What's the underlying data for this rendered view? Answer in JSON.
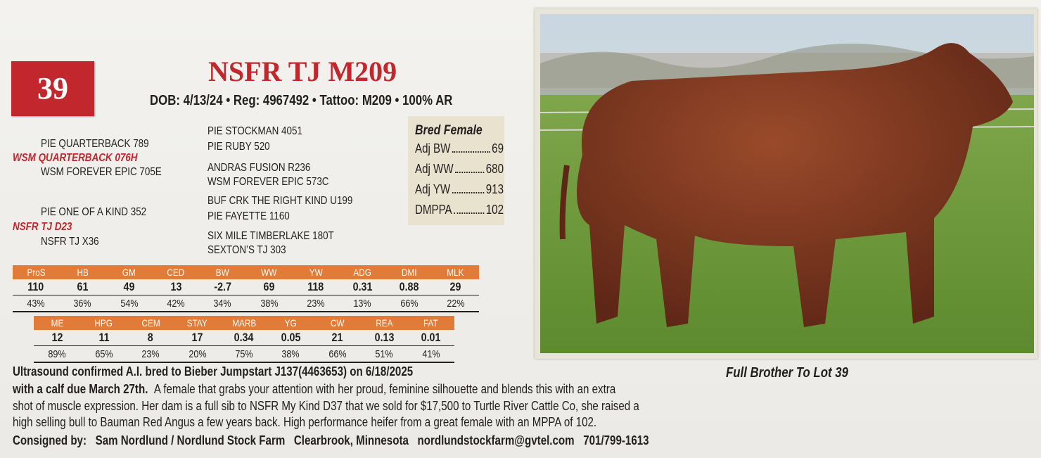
{
  "lot": "39",
  "name": "NSFR TJ M209",
  "info": "DOB: 4/13/24 • Reg: 4967492 • Tattoo: M209 • 100% AR",
  "pedigree": {
    "left": [
      "PIE QUARTERBACK 789",
      "WSM QUARTERBACK 076H",
      "WSM FOREVER EPIC 705E",
      "PIE ONE OF A KIND 352",
      "NSFR TJ D23",
      "NSFR TJ X36"
    ],
    "right": [
      "PIE STOCKMAN 4051",
      "PIE RUBY 520",
      "ANDRAS FUSION R236",
      "WSM FOREVER EPIC 573C",
      "BUF CRK THE RIGHT KIND U199",
      "PIE FAYETTE 1160",
      "SIX MILE TIMBERLAKE 180T",
      "SEXTON’S TJ 303"
    ]
  },
  "bred_female": {
    "title": "Bred Female",
    "rows": [
      {
        "label": "Adj BW",
        "value": 69
      },
      {
        "label": "Adj WW",
        "value": 680
      },
      {
        "label": "Adj YW",
        "value": 913
      },
      {
        "label": "DMPPA",
        "value": 102
      }
    ]
  },
  "epd_tables": [
    {
      "headers": [
        "ProS",
        "HB",
        "GM",
        "CED",
        "BW",
        "WW",
        "YW",
        "ADG",
        "DMI",
        "MLK"
      ],
      "values": [
        110,
        61,
        49,
        13,
        -2.7,
        69,
        118,
        0.31,
        0.88,
        29
      ],
      "percentiles": [
        "43%",
        "36%",
        "54%",
        "42%",
        "34%",
        "38%",
        "23%",
        "13%",
        "66%",
        "22%"
      ]
    },
    {
      "headers": [
        "ME",
        "HPG",
        "CEM",
        "STAY",
        "MARB",
        "YG",
        "CW",
        "REA",
        "FAT"
      ],
      "values": [
        12,
        11,
        8,
        17,
        0.34,
        0.05,
        21,
        0.13,
        0.01
      ],
      "percentiles": [
        "89%",
        "65%",
        "23%",
        "20%",
        "75%",
        "38%",
        "66%",
        "51%",
        "41%"
      ]
    }
  ],
  "description": {
    "lines": [
      {
        "bold": "Ultrasound confirmed A.I. bred to Bieber Jumpstart J137(4463653) on 6/18/2025"
      },
      {
        "bold": "with a calf due March 27th.",
        "text": "A female that grabs your attention with her proud, feminine silhouette and blends this with an extra"
      },
      {
        "text": "shot of muscle expression.  Her dam is a full sib to NSFR My Kind D37 that we sold for $17,500 to Turtle River Cattle Co, she raised a"
      },
      {
        "text": "high selling bull to Bauman Red Angus a few years back.  High performance heifer from a great female with an MPPA of 102."
      }
    ]
  },
  "consigner": {
    "label": "Consigned by:",
    "name": "Sam Nordlund / Nordlund Stock Farm",
    "location": "Clearbrook, Minnesota",
    "email": "nordlundstockfarm@gvtel.com",
    "phone": "701/799-1613"
  },
  "caption": "Full Brother To Lot 39"
}
